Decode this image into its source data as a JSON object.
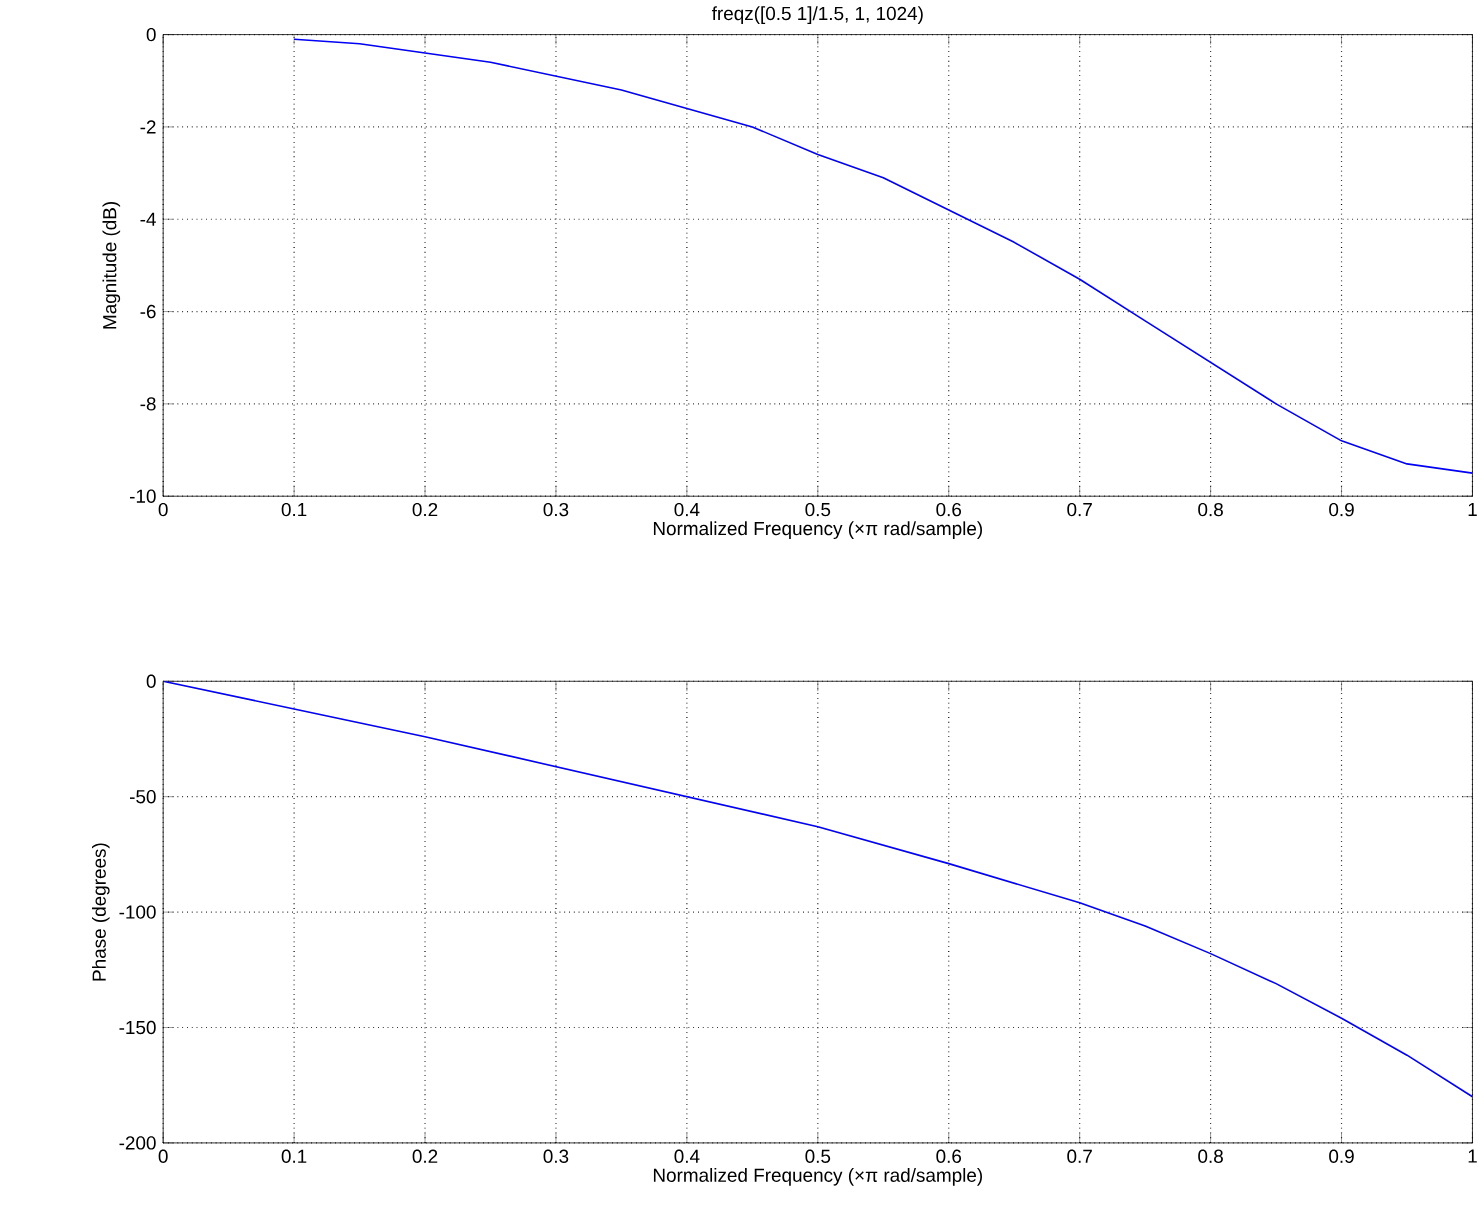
{
  "chart_data": [
    {
      "type": "line",
      "title": "freqz([0.5 1]/1.5, 1, 1024)",
      "xlabel": "Normalized Frequency  (×π rad/sample)",
      "ylabel": "Magnitude (dB)",
      "x": [
        0.1,
        0.15,
        0.2,
        0.25,
        0.3,
        0.35,
        0.4,
        0.45,
        0.5,
        0.55,
        0.6,
        0.65,
        0.7,
        0.75,
        0.8,
        0.85,
        0.9,
        0.95,
        1.0
      ],
      "series": [
        {
          "color": "#0000ff",
          "values": [
            -0.1,
            -0.2,
            -0.4,
            -0.6,
            -0.9,
            -1.2,
            -1.6,
            -2.0,
            -2.6,
            -3.1,
            -3.8,
            -4.5,
            -5.3,
            -6.2,
            -7.1,
            -8.0,
            -8.8,
            -9.3,
            -9.5
          ]
        }
      ],
      "xlim": [
        0,
        1
      ],
      "xticks": [
        0,
        0.1,
        0.2,
        0.3,
        0.4,
        0.5,
        0.6,
        0.7,
        0.8,
        0.9,
        1
      ],
      "ylim": [
        -10,
        0
      ],
      "yticks": [
        -10,
        -8,
        -6,
        -4,
        -2,
        0
      ],
      "grid": true,
      "line_style": "solid"
    },
    {
      "type": "line",
      "xlabel": "Normalized Frequency  (×π rad/sample)",
      "ylabel": "Phase (degrees)",
      "x": [
        0,
        0.1,
        0.2,
        0.3,
        0.4,
        0.5,
        0.6,
        0.7,
        0.75,
        0.8,
        0.85,
        0.9,
        0.95,
        1.0
      ],
      "series": [
        {
          "color": "#0000ff",
          "values": [
            0,
            -12,
            -24,
            -37,
            -50,
            -63,
            -79,
            -96,
            -106,
            -118,
            -131,
            -146,
            -162,
            -180
          ]
        }
      ],
      "xlim": [
        0,
        1
      ],
      "xticks": [
        0,
        0.1,
        0.2,
        0.3,
        0.4,
        0.5,
        0.6,
        0.7,
        0.8,
        0.9,
        1
      ],
      "ylim": [
        -200,
        0
      ],
      "yticks": [
        -200,
        -150,
        -100,
        -50,
        0
      ],
      "grid": true,
      "line_style": "solid"
    }
  ]
}
